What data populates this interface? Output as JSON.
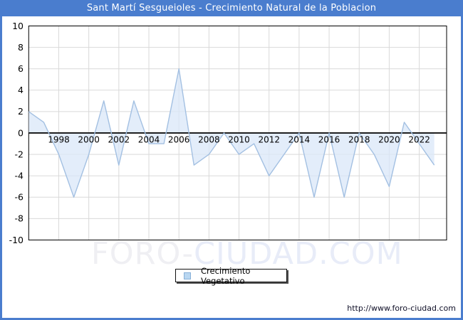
{
  "header": {
    "title": "Sant Martí Sesgueioles - Crecimiento Natural de la Poblacion",
    "bg_color": "#4a7dce",
    "text_color": "#ffffff"
  },
  "chart_data": {
    "type": "area",
    "title": "Sant Martí Sesgueioles - Crecimiento Natural de la Poblacion",
    "series": [
      {
        "name": "Crecimiento Vegetativo",
        "start_year": 1996,
        "values": [
          2,
          1,
          -2,
          -6,
          -2,
          3,
          -3,
          3,
          -1,
          -1,
          6,
          -3,
          -2,
          0,
          -2,
          -1,
          -4,
          -2,
          0,
          -6,
          0,
          -6,
          0,
          -2,
          -5,
          1,
          -1,
          -3
        ]
      }
    ],
    "x_tick_labels": [
      "1998",
      "2000",
      "2002",
      "2004",
      "2006",
      "2008",
      "2010",
      "2012",
      "2014",
      "2016",
      "2018",
      "2020",
      "2022"
    ],
    "y_ticks": [
      10,
      8,
      6,
      4,
      2,
      0,
      -2,
      -4,
      -6,
      -8,
      -10
    ],
    "ylim": [
      -10,
      10
    ],
    "xlim": [
      1996,
      2023.8
    ],
    "grid": true,
    "legend_position": "bottom",
    "line_color": "#a3c0e2",
    "fill_color": "#d9e7f8",
    "grid_color": "#d9d9d9",
    "axis_color": "#000000",
    "tick_label_color": "#000000"
  },
  "legend": {
    "label": "Crecimiento Vegetativo",
    "swatch_fill": "#b9d7f1",
    "swatch_border": "#88b0d8"
  },
  "watermark": {
    "part1": "FORO-",
    "part2": "CIUDAD.COM",
    "color1": "#efeff3",
    "color2": "#e8ecf8"
  },
  "footer": {
    "url": "http://www.foro-ciudad.com"
  }
}
